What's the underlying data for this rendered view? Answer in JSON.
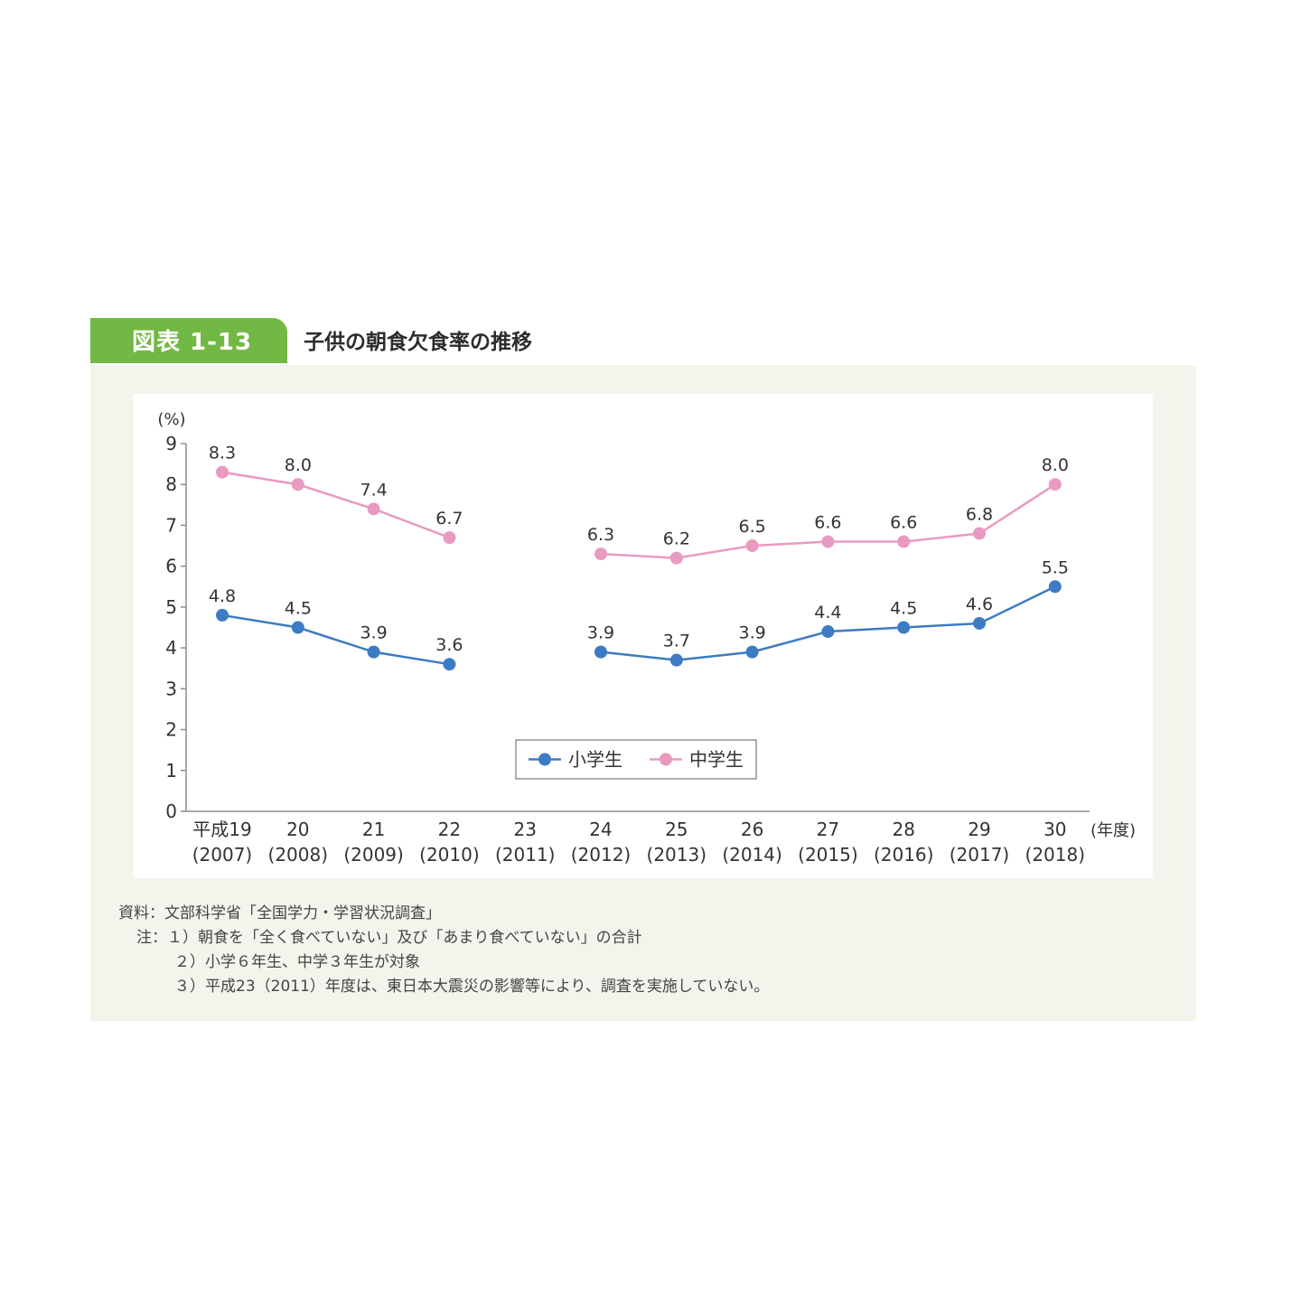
{
  "figure_label": "図表 1-13",
  "figure_title": "子供の朝食欠食率の推移",
  "chart_data": {
    "type": "line",
    "ylabel": "(%)",
    "xlabel": "(年度)",
    "ylim": [
      0,
      9
    ],
    "yticks": [
      0,
      1,
      2,
      3,
      4,
      5,
      6,
      7,
      8,
      9
    ],
    "grid": false,
    "legend_position": "bottom-center",
    "categories": [
      "平成19",
      "20",
      "21",
      "22",
      "23",
      "24",
      "25",
      "26",
      "27",
      "28",
      "29",
      "30"
    ],
    "categories_sub": [
      "(2007)",
      "(2008)",
      "(2009)",
      "(2010)",
      "(2011)",
      "(2012)",
      "(2013)",
      "(2014)",
      "(2015)",
      "(2016)",
      "(2017)",
      "(2018)"
    ],
    "series": [
      {
        "name": "小学生",
        "color": "#3d7cc4",
        "values": [
          4.8,
          4.5,
          3.9,
          3.6,
          null,
          3.9,
          3.7,
          3.9,
          4.4,
          4.5,
          4.6,
          5.5
        ],
        "labels": [
          "4.8",
          "4.5",
          "3.9",
          "3.6",
          "",
          "3.9",
          "3.7",
          "3.9",
          "4.4",
          "4.5",
          "4.6",
          "5.5"
        ]
      },
      {
        "name": "中学生",
        "color": "#e99ac1",
        "values": [
          8.3,
          8.0,
          7.4,
          6.7,
          null,
          6.3,
          6.2,
          6.5,
          6.6,
          6.6,
          6.8,
          8.0
        ],
        "labels": [
          "8.3",
          "8.0",
          "7.4",
          "6.7",
          "",
          "6.3",
          "6.2",
          "6.5",
          "6.6",
          "6.6",
          "6.8",
          "8.0"
        ]
      }
    ]
  },
  "notes": {
    "source": "資料：文部科学省「全国学力・学習状況調査」",
    "note1": "注：１）朝食を「全く食べていない」及び「あまり食べていない」の合計",
    "note2": "２）小学６年生、中学３年生が対象",
    "note3": "３）平成23（2011）年度は、東日本大震災の影響等により、調査を実施していない。"
  }
}
